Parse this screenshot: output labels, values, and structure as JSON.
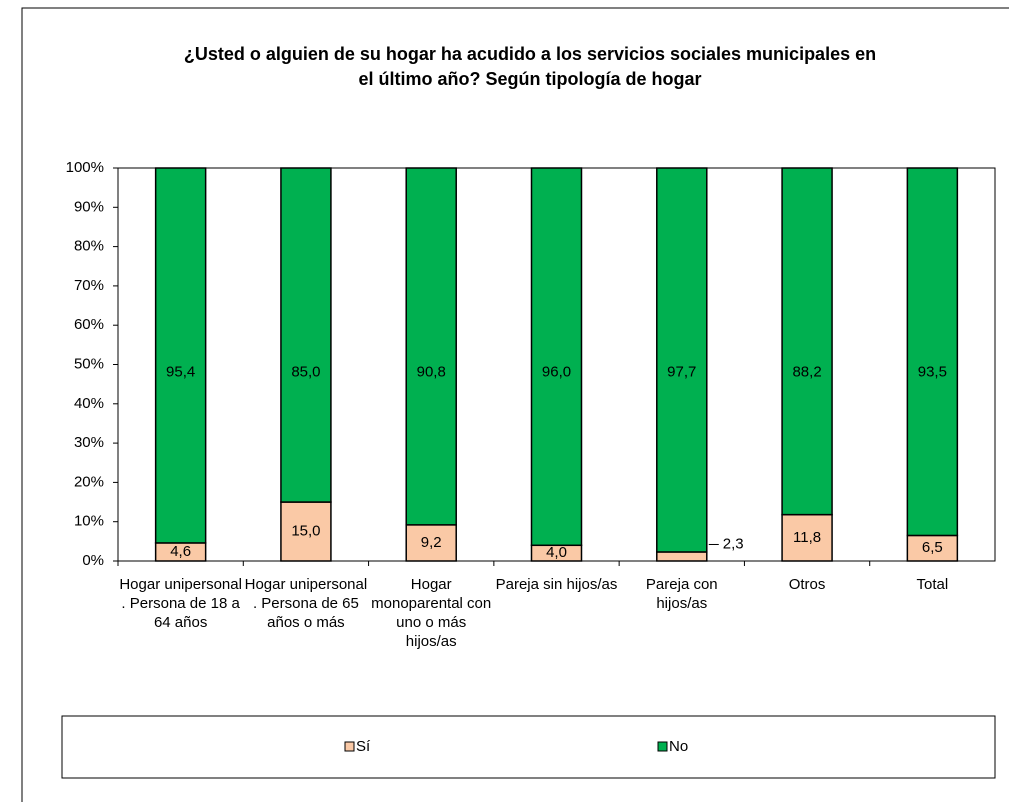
{
  "chart_data": {
    "type": "stacked_bar",
    "title": "¿Usted o alguien de su hogar ha acudido a los servicios sociales municipales en el último año? Según tipología de hogar",
    "categories": [
      "Hogar unipersonal . Persona de 18 a 64 años",
      "Hogar unipersonal . Persona de 65 años o más",
      "Hogar monoparental con uno o más hijos/as",
      "Pareja sin hijos/as",
      "Pareja con hijos/as",
      "Otros",
      "Total"
    ],
    "series": [
      {
        "name": "Sí",
        "color": "#fac9a6",
        "values": [
          4.6,
          15.0,
          9.2,
          4.0,
          2.3,
          11.8,
          6.5
        ],
        "value_labels": [
          "4,6",
          "15,0",
          "9,2",
          "4,0",
          "2,3",
          "11,8",
          "6,5"
        ]
      },
      {
        "name": "No",
        "color": "#00b050",
        "values": [
          95.4,
          85.0,
          90.8,
          96.0,
          97.7,
          88.2,
          93.5
        ],
        "value_labels": [
          "95,4",
          "85,0",
          "90,8",
          "96,0",
          "97,7",
          "88,2",
          "93,5"
        ]
      }
    ],
    "ylim": [
      0,
      100
    ],
    "yticks": [
      {
        "value": 0,
        "label": "0%"
      },
      {
        "value": 10,
        "label": "10%"
      },
      {
        "value": 20,
        "label": "20%"
      },
      {
        "value": 30,
        "label": "30%"
      },
      {
        "value": 40,
        "label": "40%"
      },
      {
        "value": 50,
        "label": "50%"
      },
      {
        "value": 60,
        "label": "60%"
      },
      {
        "value": 70,
        "label": "70%"
      },
      {
        "value": 80,
        "label": "80%"
      },
      {
        "value": 90,
        "label": "90%"
      },
      {
        "value": 100,
        "label": "100%"
      }
    ],
    "grid": false,
    "legend": "bottom"
  }
}
